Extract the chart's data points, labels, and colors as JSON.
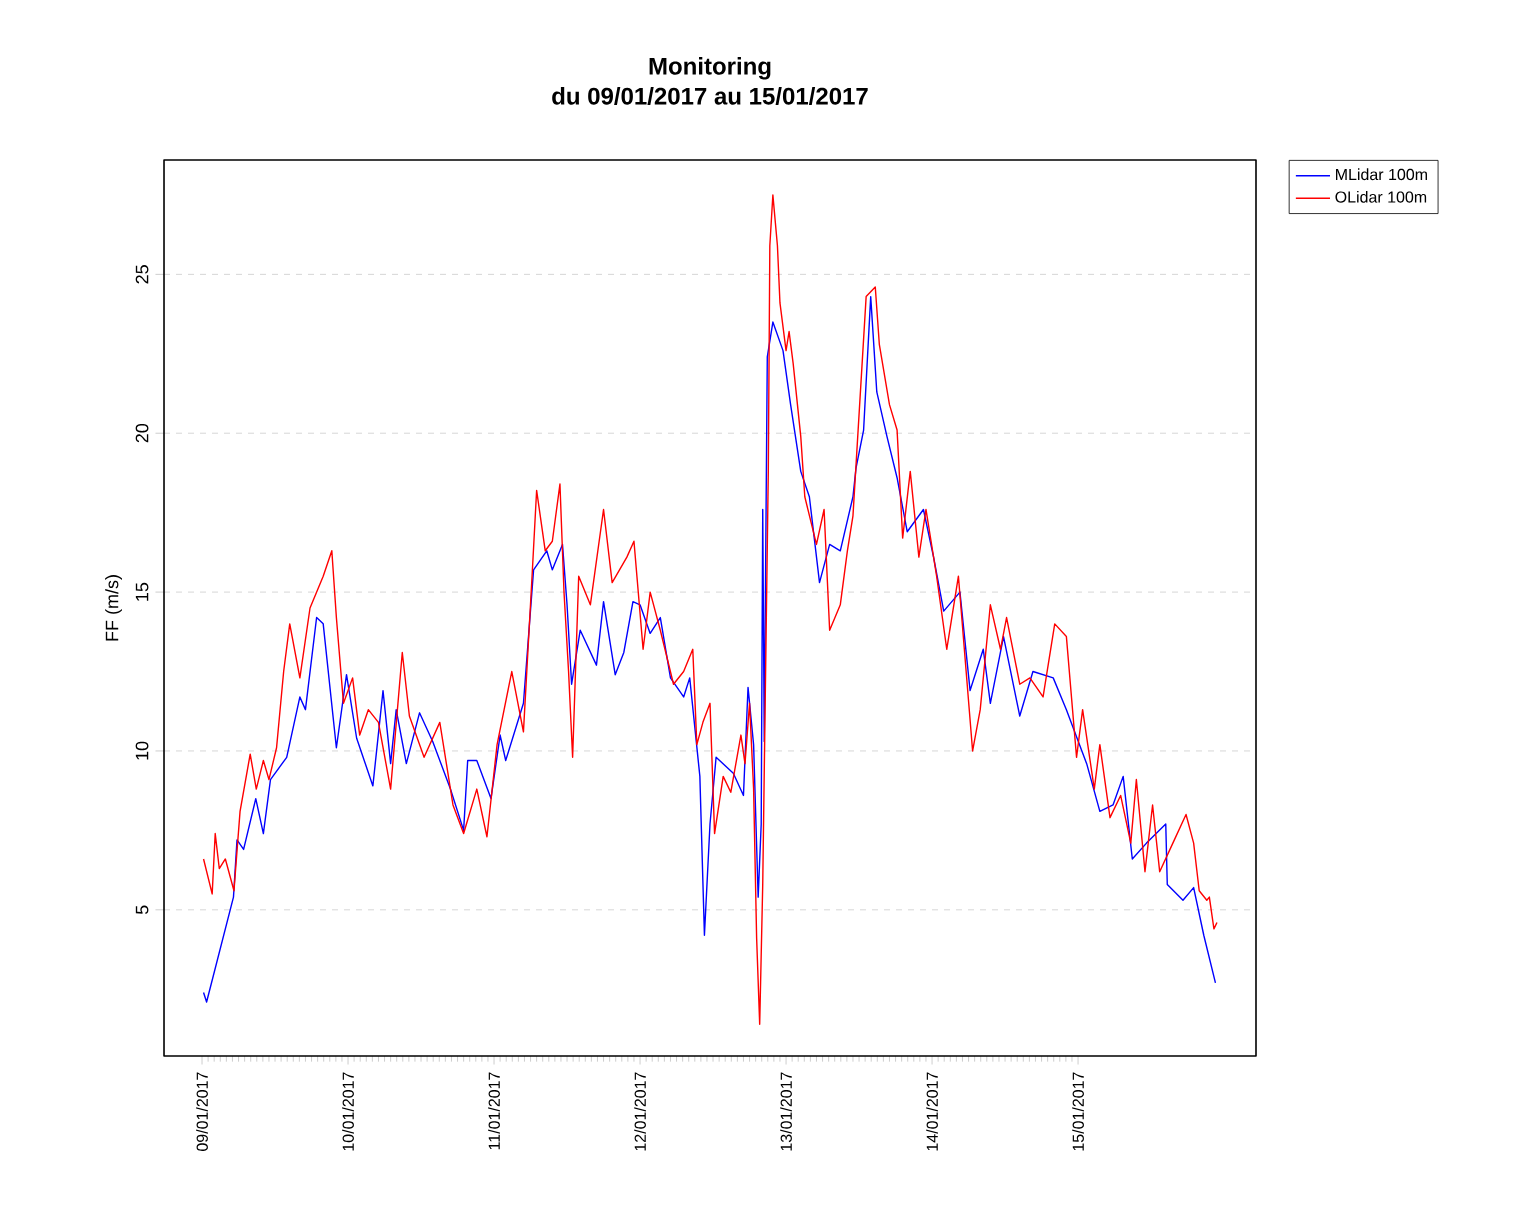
{
  "chart_data": {
    "type": "line",
    "title": "Monitoring",
    "subtitle": "du 09/01/2017 au 15/01/2017",
    "ylabel": "FF (m/s)",
    "xlim": [
      "2017-01-08T17:45",
      "2017-01-16T05:15"
    ],
    "ylim": [
      0.4,
      28.6
    ],
    "xticks": [
      {
        "value": "2017-01-09",
        "label": "09/01/2017"
      },
      {
        "value": "2017-01-10",
        "label": "10/01/2017"
      },
      {
        "value": "2017-01-11",
        "label": "11/01/2017"
      },
      {
        "value": "2017-01-12",
        "label": "12/01/2017"
      },
      {
        "value": "2017-01-13",
        "label": "13/01/2017"
      },
      {
        "value": "2017-01-14",
        "label": "14/01/2017"
      },
      {
        "value": "2017-01-15",
        "label": "15/01/2017"
      }
    ],
    "yticks": [
      5,
      10,
      15,
      20,
      25
    ],
    "grid": "y",
    "legend": "top right",
    "marker": "none",
    "line_style": "solid",
    "series": [
      {
        "name": "MLidar 100m",
        "color": "#0000ff",
        "x": [
          "2017-01-09T00:15",
          "2017-01-09T00:45",
          "2017-01-09T05:10",
          "2017-01-09T05:45",
          "2017-01-09T06:50",
          "2017-01-09T08:50",
          "2017-01-09T10:05",
          "2017-01-09T11:15",
          "2017-01-09T13:55",
          "2017-01-09T16:05",
          "2017-01-09T17:00",
          "2017-01-09T18:50",
          "2017-01-09T19:55",
          "2017-01-09T22:05",
          "2017-01-09T23:45",
          "2017-01-10T01:25",
          "2017-01-10T04:05",
          "2017-01-10T05:45",
          "2017-01-10T07:00",
          "2017-01-10T07:55",
          "2017-01-10T09:35",
          "2017-01-10T11:45",
          "2017-01-10T13:55",
          "2017-01-10T16:50",
          "2017-01-10T19:00",
          "2017-01-10T19:40",
          "2017-01-10T21:10",
          "2017-01-10T23:30",
          "2017-01-11T01:00",
          "2017-01-11T01:55",
          "2017-01-11T04:50",
          "2017-01-11T06:30",
          "2017-01-11T08:40",
          "2017-01-11T09:35",
          "2017-01-11T11:15",
          "2017-01-11T12:00",
          "2017-01-11T12:45",
          "2017-01-11T14:10",
          "2017-01-11T16:50",
          "2017-01-11T18:00",
          "2017-01-11T19:55",
          "2017-01-11T21:20",
          "2017-01-11T22:50",
          "2017-01-12T00:00",
          "2017-01-12T01:40",
          "2017-01-12T03:20",
          "2017-01-12T05:00",
          "2017-01-12T07:10",
          "2017-01-12T08:10",
          "2017-01-12T09:50",
          "2017-01-12T10:35",
          "2017-01-12T11:30",
          "2017-01-12T12:30",
          "2017-01-12T15:20",
          "2017-01-12T17:00",
          "2017-01-12T17:45",
          "2017-01-12T18:40",
          "2017-01-12T19:25",
          "2017-01-12T19:55",
          "2017-01-12T20:10",
          "2017-01-12T20:25",
          "2017-01-12T20:55",
          "2017-01-12T21:50",
          "2017-01-12T23:30",
          "2017-01-13T00:45",
          "2017-01-13T02:25",
          "2017-01-13T03:50",
          "2017-01-13T05:30",
          "2017-01-13T07:10",
          "2017-01-13T08:55",
          "2017-01-13T11:00",
          "2017-01-13T11:30",
          "2017-01-13T12:45",
          "2017-01-13T13:55",
          "2017-01-13T14:55",
          "2017-01-13T16:35",
          "2017-01-13T18:15",
          "2017-01-13T19:55",
          "2017-01-13T22:35",
          "2017-01-14T00:15",
          "2017-01-14T01:55",
          "2017-01-14T04:35",
          "2017-01-14T06:15",
          "2017-01-14T08:25",
          "2017-01-14T09:35",
          "2017-01-14T11:45",
          "2017-01-14T14:25",
          "2017-01-14T16:35",
          "2017-01-14T19:55",
          "2017-01-14T22:05",
          "2017-01-15T01:25",
          "2017-01-15T03:35",
          "2017-01-15T05:45",
          "2017-01-15T07:25",
          "2017-01-15T08:55",
          "2017-01-15T11:15",
          "2017-01-15T14:25",
          "2017-01-15T14:40",
          "2017-01-15T17:15",
          "2017-01-15T19:00",
          "2017-01-15T20:40",
          "2017-01-15T22:35"
        ],
        "values": [
          2.4,
          2.1,
          5.4,
          7.2,
          6.9,
          8.5,
          7.4,
          9.1,
          9.8,
          11.7,
          11.3,
          14.2,
          14.0,
          10.1,
          12.4,
          10.4,
          8.9,
          11.9,
          9.6,
          11.3,
          9.6,
          11.2,
          10.3,
          8.8,
          7.5,
          9.7,
          9.7,
          8.5,
          10.5,
          9.7,
          11.5,
          15.7,
          16.3,
          15.7,
          16.5,
          14.6,
          12.1,
          13.8,
          12.7,
          14.7,
          12.4,
          13.1,
          14.7,
          14.6,
          13.7,
          14.2,
          12.3,
          11.7,
          12.3,
          9.2,
          4.2,
          7.7,
          9.8,
          9.3,
          8.6,
          12.0,
          10.2,
          5.4,
          7.7,
          17.6,
          10.3,
          22.4,
          23.5,
          22.6,
          20.9,
          18.8,
          18.0,
          15.3,
          16.5,
          16.3,
          18.0,
          18.9,
          20.1,
          24.3,
          21.3,
          19.9,
          18.6,
          16.9,
          17.6,
          16.1,
          14.4,
          15.0,
          11.9,
          13.2,
          11.5,
          13.6,
          11.1,
          12.5,
          12.3,
          11.3,
          9.6,
          8.1,
          8.3,
          9.2,
          6.6,
          7.1,
          7.7,
          5.8,
          5.3,
          5.7,
          4.2,
          2.7
        ]
      },
      {
        "name": "OLidar 100m",
        "color": "#ff0000",
        "x": [
          "2017-01-09T00:15",
          "2017-01-09T01:40",
          "2017-01-09T02:10",
          "2017-01-09T02:50",
          "2017-01-09T03:50",
          "2017-01-09T05:15",
          "2017-01-09T06:15",
          "2017-01-09T07:55",
          "2017-01-09T08:55",
          "2017-01-09T10:05",
          "2017-01-09T11:00",
          "2017-01-09T12:15",
          "2017-01-09T13:25",
          "2017-01-09T14:25",
          "2017-01-09T16:05",
          "2017-01-09T17:45",
          "2017-01-09T19:55",
          "2017-01-09T21:20",
          "2017-01-09T22:05",
          "2017-01-09T23:15",
          "2017-01-10T00:45",
          "2017-01-10T01:55",
          "2017-01-10T03:20",
          "2017-01-10T05:00",
          "2017-01-10T07:00",
          "2017-01-10T08:55",
          "2017-01-10T10:05",
          "2017-01-10T12:30",
          "2017-01-10T15:05",
          "2017-01-10T17:15",
          "2017-01-10T19:00",
          "2017-01-10T21:10",
          "2017-01-10T22:50",
          "2017-01-11T00:30",
          "2017-01-11T02:55",
          "2017-01-11T04:50",
          "2017-01-11T06:15",
          "2017-01-11T07:00",
          "2017-01-11T08:25",
          "2017-01-11T09:35",
          "2017-01-11T10:50",
          "2017-01-11T11:30",
          "2017-01-11T12:15",
          "2017-01-11T12:55",
          "2017-01-11T13:55",
          "2017-01-11T15:50",
          "2017-01-11T18:00",
          "2017-01-11T19:25",
          "2017-01-11T21:50",
          "2017-01-11T23:00",
          "2017-01-12T00:30",
          "2017-01-12T01:40",
          "2017-01-12T03:20",
          "2017-01-12T05:30",
          "2017-01-12T07:10",
          "2017-01-12T08:40",
          "2017-01-12T09:20",
          "2017-01-12T10:20",
          "2017-01-12T11:30",
          "2017-01-12T12:15",
          "2017-01-12T13:40",
          "2017-01-12T14:55",
          "2017-01-12T16:35",
          "2017-01-12T17:15",
          "2017-01-12T18:00",
          "2017-01-12T18:40",
          "2017-01-12T19:10",
          "2017-01-12T19:40",
          "2017-01-12T20:10",
          "2017-01-12T21:05",
          "2017-01-12T21:20",
          "2017-01-12T21:50",
          "2017-01-12T22:35",
          "2017-01-12T23:00",
          "2017-01-13T00:00",
          "2017-01-13T00:30",
          "2017-01-13T01:10",
          "2017-01-13T02:25",
          "2017-01-13T03:05",
          "2017-01-13T05:00",
          "2017-01-13T06:15",
          "2017-01-13T07:10",
          "2017-01-13T08:55",
          "2017-01-13T10:05",
          "2017-01-13T11:00",
          "2017-01-13T13:10",
          "2017-01-13T14:40",
          "2017-01-13T15:20",
          "2017-01-13T17:00",
          "2017-01-13T18:15",
          "2017-01-13T19:10",
          "2017-01-13T20:25",
          "2017-01-13T21:50",
          "2017-01-13T23:00",
          "2017-01-14T00:45",
          "2017-01-14T02:25",
          "2017-01-14T04:20",
          "2017-01-14T06:40",
          "2017-01-14T07:55",
          "2017-01-14T09:35",
          "2017-01-14T11:15",
          "2017-01-14T12:15",
          "2017-01-14T14:25",
          "2017-01-14T16:05",
          "2017-01-14T18:15",
          "2017-01-14T20:10",
          "2017-01-14T22:05",
          "2017-01-14T23:45",
          "2017-01-15T00:45",
          "2017-01-15T02:40",
          "2017-01-15T03:35",
          "2017-01-15T05:15",
          "2017-01-15T07:00",
          "2017-01-15T08:40",
          "2017-01-15T09:35",
          "2017-01-15T11:00",
          "2017-01-15T12:15",
          "2017-01-15T13:25",
          "2017-01-15T15:35",
          "2017-01-15T17:45",
          "2017-01-15T19:00",
          "2017-01-15T19:55",
          "2017-01-15T21:10",
          "2017-01-15T21:35",
          "2017-01-15T22:20",
          "2017-01-15T22:50"
        ],
        "values": [
          6.6,
          5.5,
          7.4,
          6.3,
          6.6,
          5.6,
          8.1,
          9.9,
          8.8,
          9.7,
          9.1,
          10.1,
          12.5,
          14.0,
          12.3,
          14.5,
          15.5,
          16.3,
          14.2,
          11.5,
          12.3,
          10.5,
          11.3,
          10.9,
          8.8,
          13.1,
          11.1,
          9.8,
          10.9,
          8.3,
          7.4,
          8.8,
          7.3,
          10.2,
          12.5,
          10.6,
          15.5,
          18.2,
          16.3,
          16.6,
          18.4,
          15.0,
          12.5,
          9.8,
          15.5,
          14.6,
          17.6,
          15.3,
          16.1,
          16.6,
          13.2,
          15.0,
          13.8,
          12.1,
          12.5,
          13.2,
          10.2,
          10.9,
          11.5,
          7.4,
          9.2,
          8.7,
          10.5,
          9.6,
          11.5,
          8.8,
          4.1,
          1.4,
          5.8,
          18.8,
          25.9,
          27.5,
          25.9,
          24.1,
          22.6,
          23.2,
          22.2,
          19.9,
          18.0,
          16.5,
          17.6,
          13.8,
          14.6,
          16.3,
          17.4,
          24.3,
          24.6,
          22.8,
          20.9,
          20.1,
          16.7,
          18.8,
          16.1,
          17.6,
          15.5,
          13.2,
          15.5,
          10.0,
          11.3,
          14.6,
          13.2,
          14.2,
          12.1,
          12.3,
          11.7,
          14.0,
          13.6,
          9.8,
          11.3,
          8.8,
          10.2,
          7.9,
          8.6,
          7.1,
          9.1,
          6.2,
          8.3,
          6.2,
          7.1,
          8.0,
          7.1,
          5.6,
          5.3,
          5.4,
          4.4,
          4.6
        ]
      }
    ]
  }
}
